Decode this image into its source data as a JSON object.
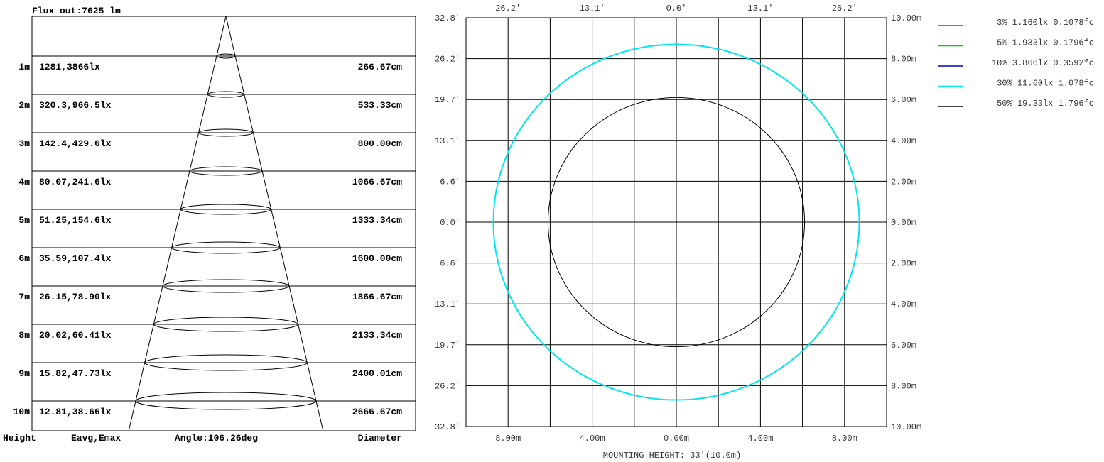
{
  "chart_data": [
    {
      "type": "table",
      "title": "Flux out:7625 lm",
      "footer": {
        "height_label": "Height",
        "illum_label": "Eavg,Emax",
        "angle_label": "Angle:106.26deg",
        "diameter_label": "Diameter"
      },
      "rows": [
        {
          "height": "1m",
          "illum": "1281,3866lx",
          "diameter": "266.67cm"
        },
        {
          "height": "2m",
          "illum": "320.3,966.5lx",
          "diameter": "533.33cm"
        },
        {
          "height": "3m",
          "illum": "142.4,429.6lx",
          "diameter": "800.00cm"
        },
        {
          "height": "4m",
          "illum": "80.07,241.6lx",
          "diameter": "1066.67cm"
        },
        {
          "height": "5m",
          "illum": "51.25,154.6lx",
          "diameter": "1333.34cm"
        },
        {
          "height": "6m",
          "illum": "35.59,107.4lx",
          "diameter": "1600.00cm"
        },
        {
          "height": "7m",
          "illum": "26.15,78.90lx",
          "diameter": "1866.67cm"
        },
        {
          "height": "8m",
          "illum": "20.02,60.41lx",
          "diameter": "2133.34cm"
        },
        {
          "height": "9m",
          "illum": "15.82,47.73lx",
          "diameter": "2400.01cm"
        },
        {
          "height": "10m",
          "illum": "12.81,38.66lx",
          "diameter": "2666.67cm"
        }
      ]
    },
    {
      "type": "contour",
      "xlabel": "MOUNTING HEIGHT: 33'(10.0m)",
      "range_m": [
        -10,
        10
      ],
      "top_ticks": [
        "26.2'",
        "13.1'",
        "0.0'",
        "13.1'",
        "26.2'"
      ],
      "left_ticks": [
        "32.8'",
        "26.2'",
        "19.7'",
        "13.1'",
        "6.6'",
        "0.0'",
        "6.6'",
        "13.1'",
        "19.7'",
        "26.2'",
        "32.8'"
      ],
      "right_ticks": [
        "10.00m",
        "8.00m",
        "6.00m",
        "4.00m",
        "2.00m",
        "0.00m",
        "2.00m",
        "4.00m",
        "6.00m",
        "8.00m",
        "10.00m"
      ],
      "bottom_ticks": [
        "8.00m",
        "4.00m",
        "0.00m",
        "4.00m",
        "8.00m"
      ],
      "contours": [
        {
          "label": "3% 1.160lx 0.1078fc",
          "color": "#ff0000",
          "radius_m": null
        },
        {
          "label": "5% 1.933lx 0.1796fc",
          "color": "#00cc00",
          "radius_m": null
        },
        {
          "label": "10% 3.866lx 0.3592fc",
          "color": "#0000cc",
          "radius_m": null
        },
        {
          "label": "30% 11.60lx 1.078fc",
          "color": "#00e5ee",
          "radius_m": 8.7
        },
        {
          "label": "50% 19.33lx 1.796fc",
          "color": "#000000",
          "radius_m": 6.1
        }
      ]
    }
  ]
}
